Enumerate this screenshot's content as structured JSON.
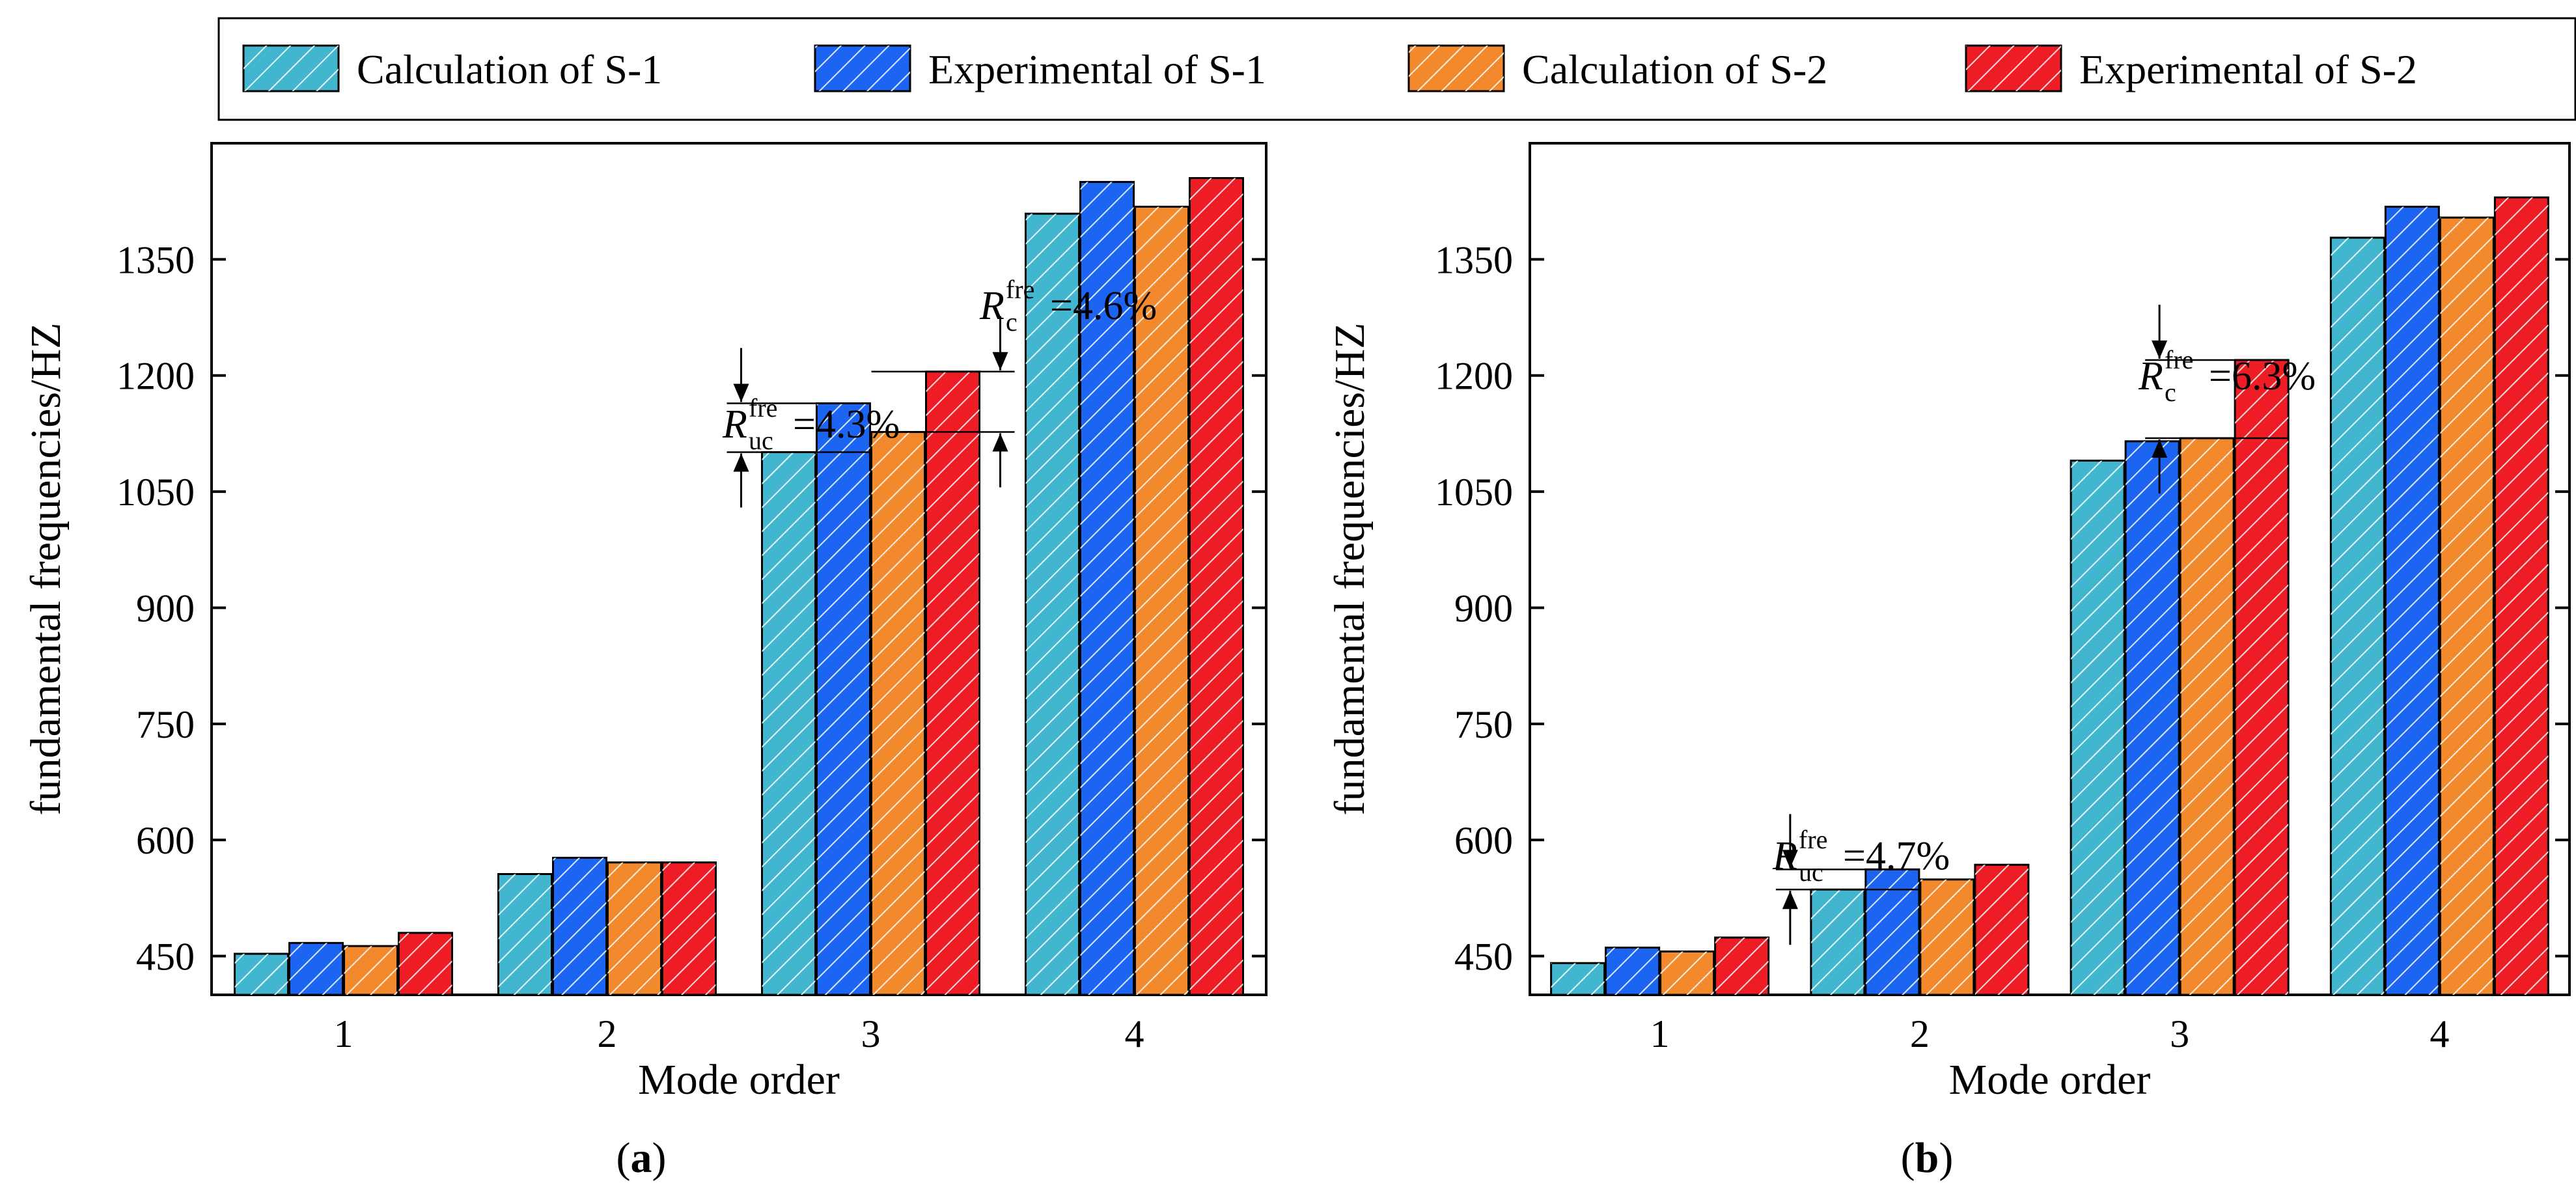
{
  "legend": {
    "items": [
      {
        "label": "Calculation of S-1",
        "color": "#43b6cf"
      },
      {
        "label": "Experimental of S-1",
        "color": "#1c64f2"
      },
      {
        "label": "Calculation of S-2",
        "color": "#f2892c"
      },
      {
        "label": "Experimental of S-2",
        "color": "#ee1c24"
      }
    ]
  },
  "chart_data": [
    {
      "type": "bar",
      "panel_label": {
        "open": "(",
        "letter": "a",
        "close": ")"
      },
      "categories": [
        "1",
        "2",
        "3",
        "4"
      ],
      "series": [
        {
          "name": "Calculation of S-1",
          "values": [
            453,
            556,
            1101,
            1409
          ]
        },
        {
          "name": "Experimental of S-1",
          "values": [
            467,
            577,
            1164,
            1450
          ]
        },
        {
          "name": "Calculation of S-2",
          "values": [
            463,
            571,
            1127,
            1418
          ]
        },
        {
          "name": "Experimental of S-2",
          "values": [
            480,
            571,
            1205,
            1455
          ]
        }
      ],
      "xlabel": "Mode order",
      "ylabel": "fundamental frequencies/HZ",
      "ylim": [
        400,
        1500
      ],
      "yticks": [
        450,
        600,
        750,
        900,
        1050,
        1200,
        1350
      ],
      "annotations": [
        {
          "symbol": "R",
          "sub": "uc",
          "sup": "fre",
          "text": "=4.3%",
          "category": "3",
          "from_series": "Calculation of S-1",
          "to_series": "Experimental of S-1"
        },
        {
          "symbol": "R",
          "sub": "c",
          "sup": "fre",
          "text": "=4.6%",
          "category": "3",
          "from_series": "Calculation of S-2",
          "to_series": "Experimental of S-2"
        }
      ]
    },
    {
      "type": "bar",
      "panel_label": {
        "open": "(",
        "letter": "b",
        "close": ")"
      },
      "categories": [
        "1",
        "2",
        "3",
        "4"
      ],
      "series": [
        {
          "name": "Calculation of S-1",
          "values": [
            441,
            536,
            1090,
            1378
          ]
        },
        {
          "name": "Experimental of S-1",
          "values": [
            461,
            562,
            1115,
            1418
          ]
        },
        {
          "name": "Calculation of S-2",
          "values": [
            456,
            549,
            1119,
            1404
          ]
        },
        {
          "name": "Experimental of S-2",
          "values": [
            474,
            568,
            1220,
            1430
          ]
        }
      ],
      "xlabel": "Mode order",
      "ylabel": "fundamental frequencies/HZ",
      "ylim": [
        400,
        1500
      ],
      "yticks": [
        450,
        600,
        750,
        900,
        1050,
        1200,
        1350
      ],
      "annotations": [
        {
          "symbol": "R",
          "sub": "uc",
          "sup": "fre",
          "text": "=4.7%",
          "category": "2",
          "from_series": "Calculation of S-1",
          "to_series": "Experimental of S-1"
        },
        {
          "symbol": "R",
          "sub": "c",
          "sup": "fre",
          "text": "=6.3%",
          "category": "3",
          "from_series": "Calculation of S-2",
          "to_series": "Experimental of S-2"
        }
      ]
    }
  ]
}
